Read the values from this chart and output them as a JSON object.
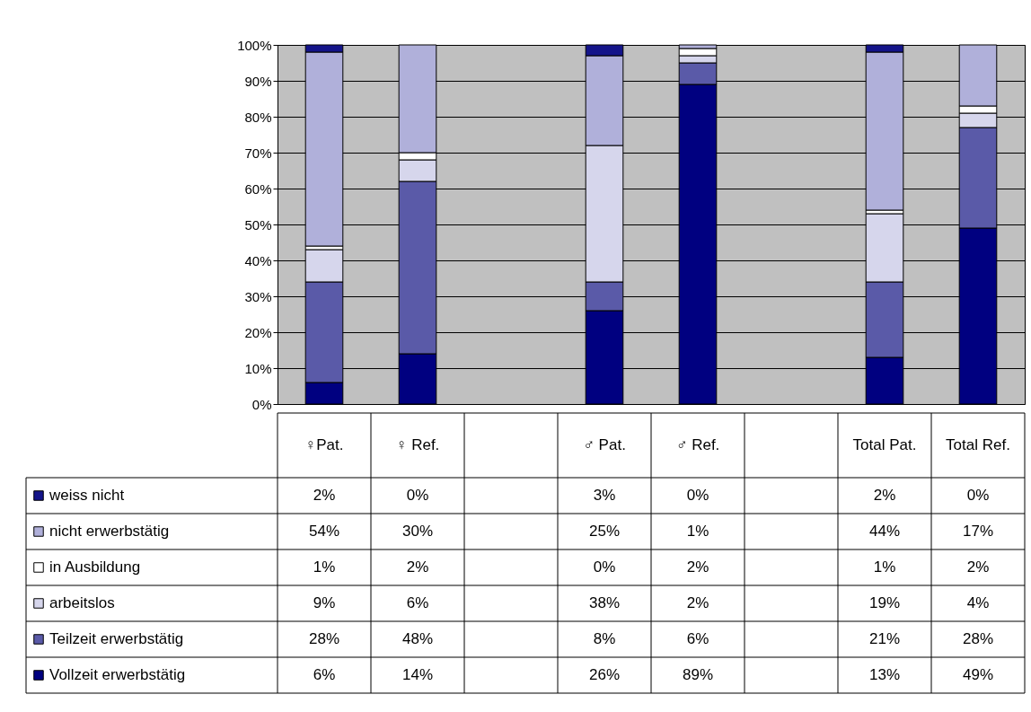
{
  "chart_data": {
    "type": "bar",
    "stacked": true,
    "categories": [
      "♀Pat.",
      "♀ Ref.",
      null,
      "♂ Pat.",
      "♂ Ref.",
      null,
      "Total Pat.",
      "Total Ref."
    ],
    "ylim": [
      0,
      100
    ],
    "yticks": [
      {
        "value": 0,
        "label": "0%"
      },
      {
        "value": 10,
        "label": "10%"
      },
      {
        "value": 20,
        "label": "20%"
      },
      {
        "value": 30,
        "label": "30%"
      },
      {
        "value": 40,
        "label": "40%"
      },
      {
        "value": 50,
        "label": "50%"
      },
      {
        "value": 60,
        "label": "60%"
      },
      {
        "value": 70,
        "label": "70%"
      },
      {
        "value": 80,
        "label": "80%"
      },
      {
        "value": 90,
        "label": "90%"
      },
      {
        "value": 100,
        "label": "100%"
      }
    ],
    "grid": "y",
    "legend": "bottom left",
    "series": [
      {
        "name": "Vollzeit erwerbstätig",
        "color": "#000080",
        "values": [
          6,
          14,
          null,
          26,
          89,
          null,
          13,
          49
        ],
        "value_labels": [
          "6%",
          "14%",
          null,
          "26%",
          "89%",
          null,
          "13%",
          "49%"
        ]
      },
      {
        "name": "Teilzeit erwerbstätig",
        "color": "#5a5aa8",
        "values": [
          28,
          48,
          null,
          8,
          6,
          null,
          21,
          28
        ],
        "value_labels": [
          "28%",
          "48%",
          null,
          "8%",
          "6%",
          null,
          "21%",
          "28%"
        ]
      },
      {
        "name": "arbeitslos",
        "color": "#d6d6ec",
        "values": [
          9,
          6,
          null,
          38,
          2,
          null,
          19,
          4
        ],
        "value_labels": [
          "9%",
          "6%",
          null,
          "38%",
          "2%",
          null,
          "19%",
          "4%"
        ]
      },
      {
        "name": "in Ausbildung",
        "color": "#ffffff",
        "values": [
          1,
          2,
          null,
          0,
          2,
          null,
          1,
          2
        ],
        "value_labels": [
          "1%",
          "2%",
          null,
          "0%",
          "2%",
          null,
          "1%",
          "2%"
        ]
      },
      {
        "name": "nicht erwerbstätig",
        "color": "#b0b0da",
        "values": [
          54,
          30,
          null,
          25,
          1,
          null,
          44,
          17
        ],
        "value_labels": [
          "54%",
          "30%",
          null,
          "25%",
          "1%",
          null,
          "44%",
          "17%"
        ]
      },
      {
        "name": "weiss nicht",
        "color": "#14148a",
        "values": [
          2,
          0,
          null,
          3,
          0,
          null,
          2,
          0
        ],
        "value_labels": [
          "2%",
          "0%",
          null,
          "3%",
          "0%",
          null,
          "2%",
          "0%"
        ]
      }
    ]
  }
}
